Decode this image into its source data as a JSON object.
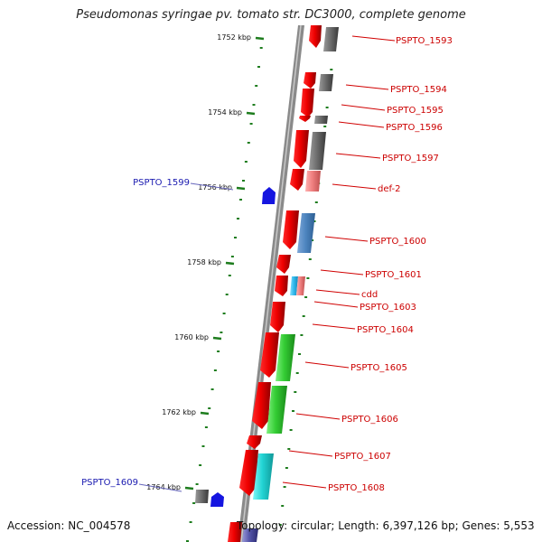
{
  "title": "Pseudomonas syringae pv. tomato str. DC3000, complete genome",
  "accession": "Accession: NC_004578",
  "topology": "Topology: circular; Length: 6,397,126 bp; Genes: 5,553",
  "colors": {
    "backbone": "#8a8a8a",
    "tick": "#1e7d1e",
    "right_label": "#cc0000",
    "left_label": "#1a1ab0",
    "leader_right": "#d00000",
    "leader_left": "#6666bb"
  },
  "kbp_labels": [
    "1752 kbp",
    "1754 kbp",
    "1756 kbp",
    "1758 kbp",
    "1760 kbp",
    "1762 kbp",
    "1764 kbp"
  ],
  "genes_right": [
    "PSPTO_1593",
    "PSPTO_1594",
    "PSPTO_1595",
    "PSPTO_1596",
    "PSPTO_1597",
    "def-2",
    "PSPTO_1600",
    "PSPTO_1601",
    "cdd",
    "PSPTO_1603",
    "PSPTO_1604",
    "PSPTO_1605",
    "PSPTO_1606",
    "PSPTO_1607",
    "PSPTO_1608"
  ],
  "genes_left": [
    "PSPTO_1599",
    "PSPTO_1609"
  ]
}
